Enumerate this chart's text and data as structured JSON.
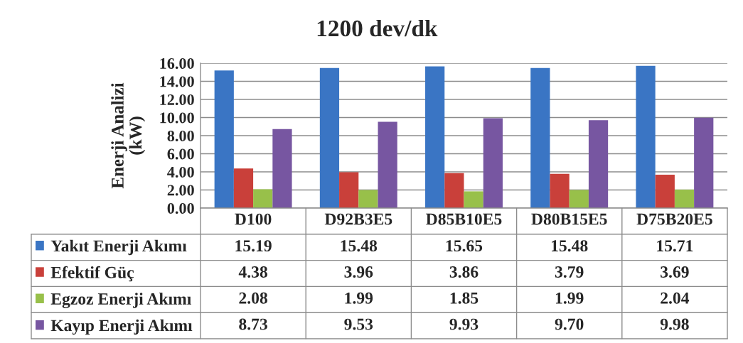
{
  "chart_data": {
    "type": "bar",
    "title": "1200 dev/dk",
    "ylabel": "Enerji Analizi\n(kW)",
    "categories": [
      "D100",
      "D92B3E5",
      "D85B10E5",
      "D80B15E5",
      "D75B20E5"
    ],
    "series": [
      {
        "name": "Yakıt Enerji Akımı",
        "color": "#3a75c4",
        "values": [
          15.19,
          15.48,
          15.65,
          15.48,
          15.71
        ],
        "value_labels": [
          "15.19",
          "15.48",
          "15.65",
          "15.48",
          "15.71"
        ]
      },
      {
        "name": "Efektif Güç",
        "color": "#c9403a",
        "values": [
          4.38,
          3.96,
          3.86,
          3.79,
          3.69
        ],
        "value_labels": [
          "4.38",
          "3.96",
          "3.86",
          "3.79",
          "3.69"
        ]
      },
      {
        "name": "Egzoz Enerji Akımı",
        "color": "#98c04a",
        "values": [
          2.08,
          1.99,
          1.85,
          1.99,
          2.04
        ],
        "value_labels": [
          "2.08",
          "1.99",
          "1.85",
          "1.99",
          "2.04"
        ]
      },
      {
        "name": "Kayıp Enerji Akımı",
        "color": "#7756a1",
        "values": [
          8.73,
          9.53,
          9.93,
          9.7,
          9.98
        ],
        "value_labels": [
          "8.73",
          "9.53",
          "9.93",
          "9.70",
          "9.98"
        ]
      }
    ],
    "ylim": [
      0,
      16
    ],
    "yticks": [
      {
        "value": 0,
        "label": "0.00"
      },
      {
        "value": 2,
        "label": "2.00"
      },
      {
        "value": 4,
        "label": "4.00"
      },
      {
        "value": 6,
        "label": "6.00"
      },
      {
        "value": 8,
        "label": "8.00"
      },
      {
        "value": 10,
        "label": "10.00"
      },
      {
        "value": 12,
        "label": "12.00"
      },
      {
        "value": 14,
        "label": "14.00"
      },
      {
        "value": 16,
        "label": "16.00"
      }
    ],
    "grid": "y",
    "legend": "bottom left"
  }
}
